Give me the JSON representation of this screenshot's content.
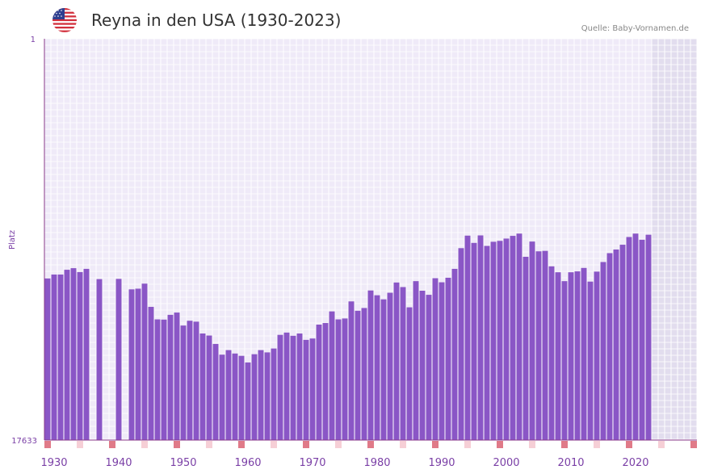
{
  "header": {
    "title": "Reyna in den USA (1930-2023)",
    "source": "Quelle: Baby-Vornamen.de",
    "flag_icon": "usa-flag-icon"
  },
  "colors": {
    "bar": "#8a56c6",
    "grid_bg": "#efeaf8",
    "future_bg": "#e2ddee",
    "axis": "#8a3a8a",
    "marker_strong": "#e07a88",
    "marker_light": "#f6cfd6"
  },
  "chart_data": {
    "type": "bar",
    "title": "Reyna in den USA (1930-2023)",
    "ylabel": "Platz",
    "xlabel": "",
    "y_top_label": "1",
    "y_bottom_label": "17633",
    "ylim": [
      1,
      17633
    ],
    "y_inverted": true,
    "xlim": [
      1929,
      2030
    ],
    "future_start": 2023,
    "x_ticks": [
      1930,
      1940,
      1950,
      1960,
      1970,
      1980,
      1990,
      2000,
      2010,
      2020
    ],
    "years": [
      1929,
      1930,
      1931,
      1932,
      1933,
      1934,
      1935,
      1936,
      1937,
      1938,
      1939,
      1940,
      1941,
      1942,
      1943,
      1944,
      1945,
      1946,
      1947,
      1948,
      1949,
      1950,
      1951,
      1952,
      1953,
      1954,
      1955,
      1956,
      1957,
      1958,
      1959,
      1960,
      1961,
      1962,
      1963,
      1964,
      1965,
      1966,
      1967,
      1968,
      1969,
      1970,
      1971,
      1972,
      1973,
      1974,
      1975,
      1976,
      1977,
      1978,
      1979,
      1980,
      1981,
      1982,
      1983,
      1984,
      1985,
      1986,
      1987,
      1988,
      1989,
      1990,
      1991,
      1992,
      1993,
      1994,
      1995,
      1996,
      1997,
      1998,
      1999,
      2000,
      2001,
      2002,
      2003,
      2004,
      2005,
      2006,
      2007,
      2008,
      2009,
      2010,
      2011,
      2012,
      2013,
      2014,
      2015,
      2016,
      2017,
      2018,
      2019,
      2020,
      2021,
      2022
    ],
    "ranks": [
      10530,
      10360,
      10360,
      10150,
      10080,
      10250,
      10110,
      null,
      10560,
      null,
      null,
      10550,
      null,
      11010,
      10980,
      10760,
      11780,
      12330,
      12340,
      12130,
      12030,
      12600,
      12390,
      12430,
      12950,
      13040,
      13410,
      13880,
      13680,
      13830,
      13930,
      14220,
      13860,
      13680,
      13780,
      13610,
      13010,
      12910,
      13050,
      12950,
      13230,
      13170,
      12560,
      12490,
      11980,
      12330,
      12290,
      11540,
      11950,
      11830,
      11060,
      11270,
      11450,
      11160,
      10710,
      10910,
      11800,
      10650,
      11070,
      11250,
      10520,
      10700,
      10500,
      10110,
      9200,
      8650,
      8970,
      8640,
      9100,
      8920,
      8880,
      8780,
      8660,
      8560,
      9580,
      8910,
      9340,
      9320,
      10000,
      10260,
      10650,
      10260,
      10220,
      10070,
      10670,
      10230,
      9810,
      9420,
      9260,
      9050,
      8710,
      8560,
      8830,
      8610
    ]
  }
}
